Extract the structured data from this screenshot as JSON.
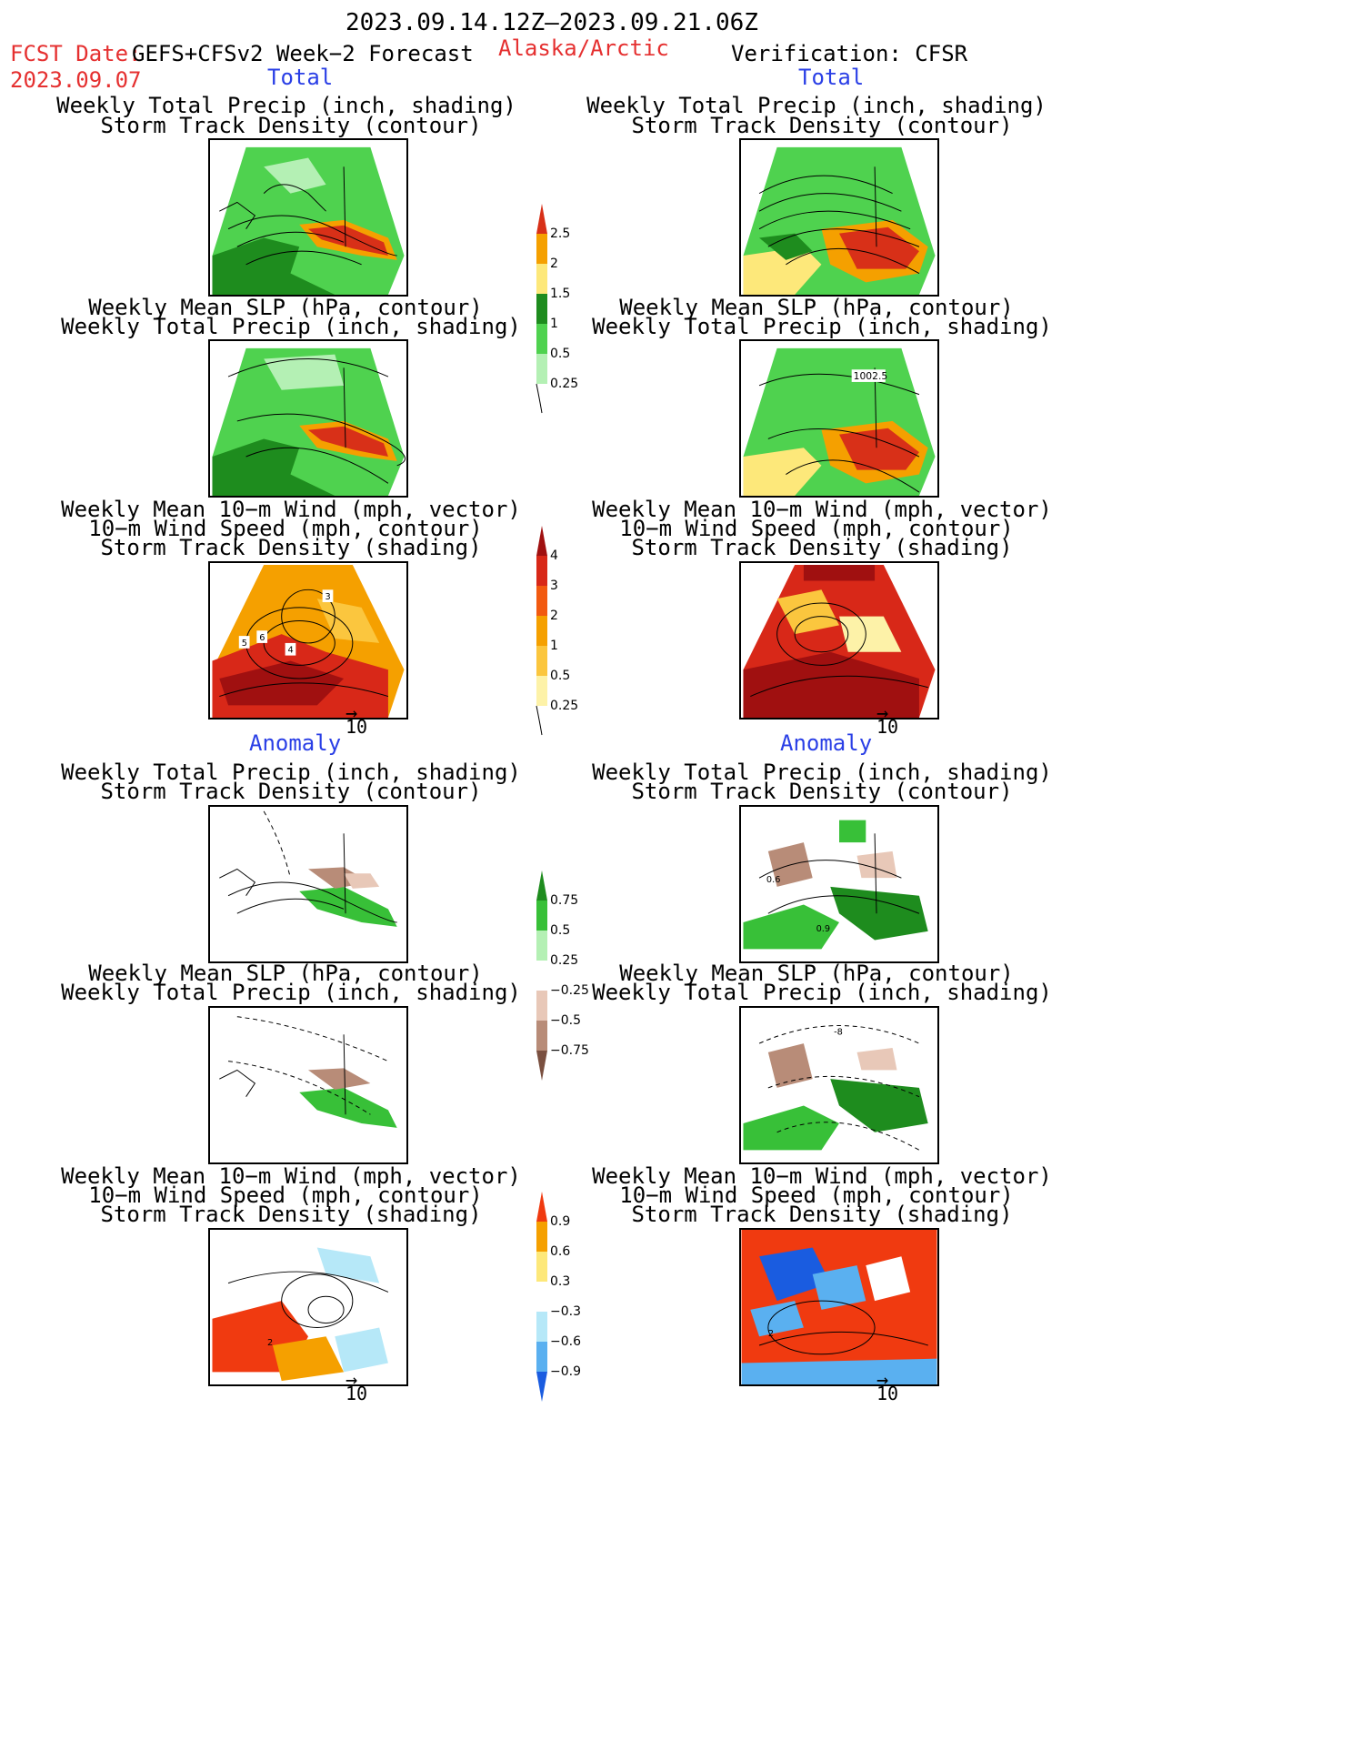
{
  "header": {
    "date_range": "2023.09.14.12Z–2023.09.21.06Z",
    "fcst_label": "FCST Date:",
    "fcst_model": "GEFS+CFSv2 Week−2 Forecast",
    "fcst_date": "2023.09.07",
    "region": "Alaska/Arctic",
    "verification": "Verification: CFSR"
  },
  "sections": {
    "total": "Total",
    "anomaly": "Anomaly"
  },
  "panel_titles": {
    "precip_storm": [
      "Weekly Total Precip (inch, shading)",
      "Storm Track Density (contour)"
    ],
    "slp_precip": [
      "Weekly Mean SLP (hPa, contour)",
      "Weekly Total Precip (inch, shading)"
    ],
    "wind_storm": [
      "Weekly Mean 10−m Wind (mph, vector)",
      "10−m Wind Speed (mph, contour)",
      "Storm Track Density (shading)"
    ]
  },
  "vector_ref": "10",
  "contour_labels": {
    "cfsr_slp": "1002.5",
    "gefs_wind_1": "5",
    "gefs_wind_2": "6",
    "gefs_wind_3": "4",
    "gefs_wind_4": "3",
    "cfsr_anom_1": "0.6",
    "cfsr_anom_2": "0.9",
    "cfsr_anom_slp": "-8",
    "gefs_anom_wind": "2",
    "cfsr_anom_wind": "2"
  },
  "colorbars": {
    "precip_total": {
      "ticks": [
        "2.5",
        "2",
        "1.5",
        "1",
        "0.5",
        "0.25"
      ],
      "colors": [
        "#d83018",
        "#f5a000",
        "#fde87a",
        "#1e8c1e",
        "#4fd24f",
        "#b4f0b4"
      ]
    },
    "storm_total": {
      "ticks": [
        "4",
        "3",
        "2",
        "1",
        "0.5",
        "0.25"
      ],
      "colors": [
        "#a01010",
        "#d82818",
        "#f25a10",
        "#f5a000",
        "#fbc63e",
        "#fdf2a8"
      ]
    },
    "precip_anom": {
      "ticks": [
        "0.75",
        "0.5",
        "0.25",
        "−0.25",
        "−0.5",
        "−0.75"
      ],
      "colors": [
        "#1e8c1e",
        "#38c038",
        "#b4f0b4",
        "#ffffff",
        "#e8c8b8",
        "#b88c78",
        "#7a5040"
      ]
    },
    "storm_anom": {
      "ticks": [
        "0.9",
        "0.6",
        "0.3",
        "−0.3",
        "−0.6",
        "−0.9"
      ],
      "colors": [
        "#f03a10",
        "#f5a000",
        "#fde87a",
        "#ffffff",
        "#b6e8f8",
        "#5ab0f0",
        "#1a5ce0"
      ]
    }
  }
}
